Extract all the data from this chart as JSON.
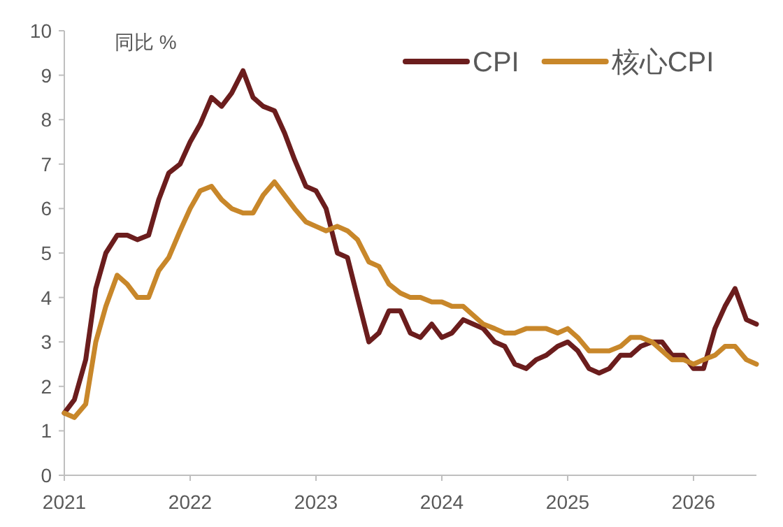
{
  "chart_data": {
    "type": "line",
    "ylabel": "同比 %",
    "xlim": [
      2021,
      2026.5
    ],
    "xticks": [
      2021,
      2022,
      2023,
      2024,
      2025,
      2026
    ],
    "ylim": [
      0,
      10
    ],
    "yticks": [
      0,
      1,
      2,
      3,
      4,
      5,
      6,
      7,
      8,
      9,
      10
    ],
    "legend": "top right",
    "grid": false,
    "x": [
      2021,
      2021.08,
      2021.17,
      2021.25,
      2021.33,
      2021.42,
      2021.5,
      2021.58,
      2021.67,
      2021.75,
      2021.83,
      2021.92,
      2022,
      2022.08,
      2022.17,
      2022.25,
      2022.33,
      2022.42,
      2022.5,
      2022.58,
      2022.67,
      2022.75,
      2022.83,
      2022.92,
      2023,
      2023.08,
      2023.17,
      2023.25,
      2023.33,
      2023.42,
      2023.5,
      2023.58,
      2023.67,
      2023.75,
      2023.83,
      2023.92,
      2024,
      2024.08,
      2024.17,
      2024.25,
      2024.33,
      2024.42,
      2024.5,
      2024.58,
      2024.67,
      2024.75,
      2024.83,
      2024.92,
      2025,
      2025.08,
      2025.17,
      2025.25,
      2025.33,
      2025.42,
      2025.5,
      2025.58,
      2025.67,
      2025.75,
      2025.83,
      2025.92,
      2026,
      2026.08,
      2026.17,
      2026.25,
      2026.33,
      2026.42,
      2026.5
    ],
    "series": [
      {
        "name": "CPI",
        "color": "#6b1d1d",
        "values": [
          1.4,
          1.7,
          2.6,
          4.2,
          5.0,
          5.4,
          5.4,
          5.3,
          5.4,
          6.2,
          6.8,
          7.0,
          7.5,
          7.9,
          8.5,
          8.3,
          8.6,
          9.1,
          8.5,
          8.3,
          8.2,
          7.7,
          7.1,
          6.5,
          6.4,
          6.0,
          5.0,
          4.9,
          4.0,
          3.0,
          3.2,
          3.7,
          3.7,
          3.2,
          3.1,
          3.4,
          3.1,
          3.2,
          3.5,
          3.4,
          3.3,
          3.0,
          2.9,
          2.5,
          2.4,
          2.6,
          2.7,
          2.9,
          3.0,
          2.8,
          2.4,
          2.3,
          2.4,
          2.7,
          2.7,
          2.9,
          3.0,
          3.0,
          2.7,
          2.7,
          2.4,
          2.4,
          3.3,
          3.8,
          4.2,
          3.5,
          3.4
        ]
      },
      {
        "name": "核心CPI",
        "color": "#c8872a",
        "values": [
          1.4,
          1.3,
          1.6,
          3.0,
          3.8,
          4.5,
          4.3,
          4.0,
          4.0,
          4.6,
          4.9,
          5.5,
          6.0,
          6.4,
          6.5,
          6.2,
          6.0,
          5.9,
          5.9,
          6.3,
          6.6,
          6.3,
          6.0,
          5.7,
          5.6,
          5.5,
          5.6,
          5.5,
          5.3,
          4.8,
          4.7,
          4.3,
          4.1,
          4.0,
          4.0,
          3.9,
          3.9,
          3.8,
          3.8,
          3.6,
          3.4,
          3.3,
          3.2,
          3.2,
          3.3,
          3.3,
          3.3,
          3.2,
          3.3,
          3.1,
          2.8,
          2.8,
          2.8,
          2.9,
          3.1,
          3.1,
          3.0,
          2.8,
          2.6,
          2.6,
          2.5,
          2.6,
          2.7,
          2.9,
          2.9,
          2.6,
          2.5
        ]
      }
    ]
  }
}
